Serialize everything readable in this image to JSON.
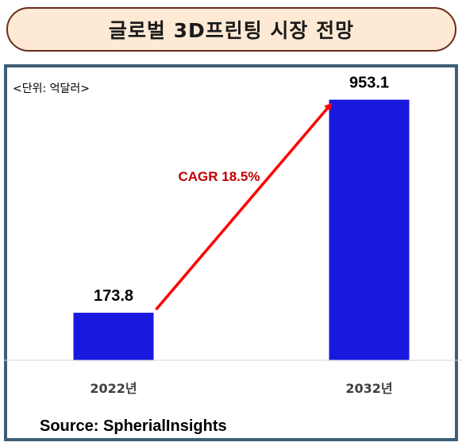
{
  "title": "글로벌 3D프린팅 시장 전망",
  "unit_label": "<단위: 억달러>",
  "source": "Source: SpherialInsights",
  "annotation": {
    "text": "CAGR 18.5%",
    "color": "#c00000"
  },
  "colors": {
    "bar": "#1818de",
    "arrow": "#ff0000",
    "title_bg": "#fde9d4",
    "title_border": "#6b2a1a",
    "frame_border": "#3d5f78"
  },
  "chart_data": {
    "type": "bar",
    "categories": [
      "2022년",
      "2032년"
    ],
    "values": [
      173.8,
      953.1
    ],
    "data_labels": [
      "173.8",
      "953.1"
    ],
    "title": "글로벌 3D프린팅 시장 전망",
    "xlabel": "",
    "ylabel": "<단위: 억달러>",
    "ylim": [
      0,
      1100
    ],
    "grid": false,
    "legend": "none"
  }
}
